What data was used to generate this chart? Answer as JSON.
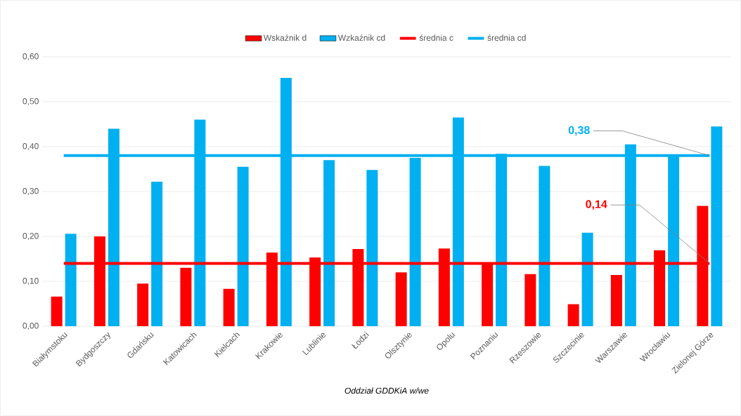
{
  "chart_data": {
    "type": "bar",
    "categories": [
      "Białymstoku",
      "Bydgoszczy",
      "Gdańsku",
      "Katowicach",
      "Kielcach",
      "Krakowie",
      "Lublinie",
      "Łodzi",
      "Olsztynie",
      "Opolu",
      "Poznaniu",
      "Rzeszowie",
      "Szczecinie",
      "Warszawie",
      "Wrocławiu",
      "Zielonej Górze"
    ],
    "series": [
      {
        "name": "Wskaźnik d",
        "color": "#ff0000",
        "values": [
          0.066,
          0.2,
          0.095,
          0.13,
          0.083,
          0.164,
          0.153,
          0.172,
          0.12,
          0.173,
          0.14,
          0.116,
          0.049,
          0.114,
          0.169,
          0.268
        ]
      },
      {
        "name": "Wzkaźnik cd",
        "color": "#00b0f0",
        "values": [
          0.206,
          0.44,
          0.322,
          0.46,
          0.355,
          0.553,
          0.37,
          0.348,
          0.375,
          0.465,
          0.384,
          0.357,
          0.208,
          0.405,
          0.38,
          0.445
        ]
      },
      {
        "name": "średnia c",
        "type": "line",
        "color": "#ff0000",
        "values": [
          0.14,
          0.14,
          0.14,
          0.14,
          0.14,
          0.14,
          0.14,
          0.14,
          0.14,
          0.14,
          0.14,
          0.14,
          0.14,
          0.14,
          0.14,
          0.14
        ]
      },
      {
        "name": "średnia cd",
        "type": "line",
        "color": "#00b0f0",
        "values": [
          0.38,
          0.38,
          0.38,
          0.38,
          0.38,
          0.38,
          0.38,
          0.38,
          0.38,
          0.38,
          0.38,
          0.38,
          0.38,
          0.38,
          0.38,
          0.38
        ]
      }
    ],
    "xlabel": "Oddział GDDKiA w/we",
    "ylim": [
      0,
      0.6
    ],
    "yticks": [
      {
        "value": 0,
        "label": "0,00"
      },
      {
        "value": 0.1,
        "label": "0,10"
      },
      {
        "value": 0.2,
        "label": "0,20"
      },
      {
        "value": 0.3,
        "label": "0,30"
      },
      {
        "value": 0.4,
        "label": "0,40"
      },
      {
        "value": 0.5,
        "label": "0,50"
      },
      {
        "value": 0.6,
        "label": "0,60"
      }
    ],
    "grid": "y",
    "legend": "top",
    "annotations": [
      {
        "text": "0,38",
        "x": "Zielonej Górze",
        "y": 0.38
      },
      {
        "text": "0,14",
        "x": "Zielonej Górze",
        "y": 0.14
      }
    ]
  }
}
